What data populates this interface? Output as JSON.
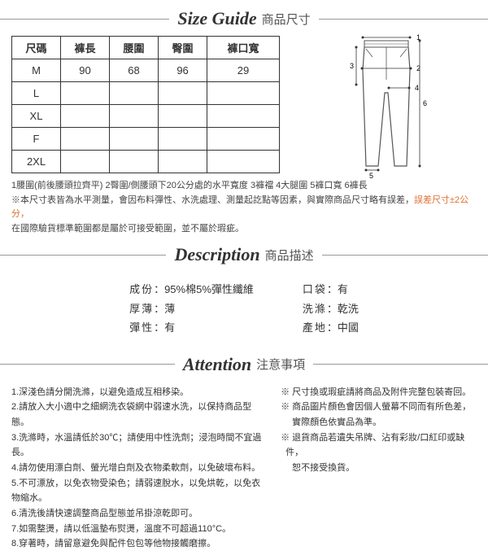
{
  "sections": {
    "size": {
      "en": "Size Guide",
      "zh": "商品尺寸"
    },
    "desc": {
      "en": "Description",
      "zh": "商品描述"
    },
    "att": {
      "en": "Attention",
      "zh": "注意事項"
    }
  },
  "table": {
    "headers": [
      "尺碼",
      "褲長",
      "腰圍",
      "臀圍",
      "褲口寬"
    ],
    "rows": [
      [
        "M",
        "90",
        "68",
        "96",
        "29"
      ],
      [
        "L",
        "",
        "",
        "",
        ""
      ],
      [
        "XL",
        "",
        "",
        "",
        ""
      ],
      [
        "F",
        "",
        "",
        "",
        ""
      ],
      [
        "2XL",
        "",
        "",
        "",
        ""
      ]
    ]
  },
  "diagram_labels": [
    "1",
    "2",
    "3",
    "4",
    "5",
    "6"
  ],
  "size_notes": {
    "l1": "1腰圍(前後腰頭拉齊平) 2臀圍/側腰頭下20公分處的水平寬度 3褲襠 4大腿圍 5褲口寬 6褲長",
    "l2a": "※本尺寸表皆為水平測量，會因布料彈性、水洗處理、測量起訖點等因素，與實際商品尺寸略有誤差，",
    "l2b": "誤差尺寸±2公分，",
    "l3": "在國際驗貨標準範圍都是屬於可接受範圍，並不屬於瑕疵。"
  },
  "desc": {
    "left": [
      {
        "label": "成份",
        "value": "：95%棉5%彈性纖維"
      },
      {
        "label": "厚薄",
        "value": "：薄"
      },
      {
        "label": "彈性",
        "value": "：有"
      }
    ],
    "right": [
      {
        "label": "口袋",
        "value": "：有"
      },
      {
        "label": "洗滌",
        "value": "：乾洗"
      },
      {
        "label": "產地",
        "value": "：中國"
      }
    ]
  },
  "attention_left": [
    "1.深淺色請分開洗滌，以避免造成互相移染。",
    "2.請放入大小適中之細網洗衣袋網中弱速水洗，以保持商品型態。",
    "3.洗滌時，水溫請低於30℃；請使用中性洗劑；浸泡時間不宜過長。",
    "4.請勿使用漂白劑、螢光增白劑及衣物柔軟劑，以免破壞布料。",
    "5.不可漂放，以免衣物受染色；請弱速脫水，以免烘乾，以免衣物縮水。",
    "6.清洗後請快速調整商品型態並吊掛涼乾即可。",
    "7.如需整燙，請以低溫墊布熨燙，溫度不可超過110°C。",
    "8.穿著時，請留意避免與配件包包等他物接觸磨擦。"
  ],
  "attention_right": [
    "※ 尺寸換或瑕疵請將商品及附件完整包裝寄回。",
    "※ 商品圖片顏色會因個人螢幕不同而有所色差，",
    "　 實際顏色依實品為準。",
    "※ 退貨商品若遺失吊牌、沾有彩妝/口紅印或缺件，",
    "　 恕不接受換貨。"
  ]
}
